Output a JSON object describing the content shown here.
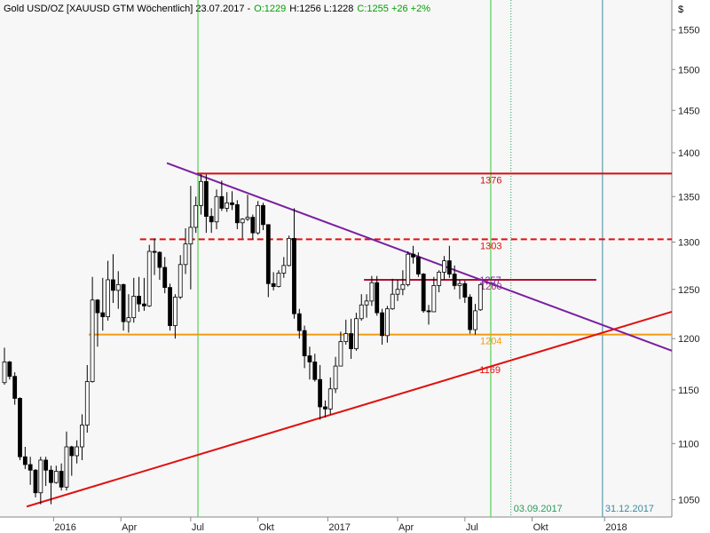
{
  "chart_data": {
    "type": "candlestick",
    "header": [
      {
        "text": "Gold USD/OZ [XAUUSD GTM  Wöchentlich] 23.07.2017 -",
        "color": "#000000"
      },
      {
        "text": "O:1229",
        "color": "#00a000"
      },
      {
        "text": "H:1256 L:1228",
        "color": "#000000"
      },
      {
        "text": "C:1255 +26 +2%",
        "color": "#00a000"
      }
    ],
    "y_unit": "$",
    "log_scale": true,
    "ylim": [
      1035,
      1589
    ],
    "yticks": [
      1050,
      1100,
      1150,
      1200,
      1250,
      1300,
      1350,
      1400,
      1450,
      1500,
      1550
    ],
    "xlim": [
      -0.86,
      129
    ],
    "xticks": [
      {
        "value": 9.5,
        "label": "2016"
      },
      {
        "value": 22.5,
        "label": "Apr"
      },
      {
        "value": 36,
        "label": "Jul"
      },
      {
        "value": 49,
        "label": "Okt"
      },
      {
        "value": 62.5,
        "label": "2017"
      },
      {
        "value": 76,
        "label": "Apr"
      },
      {
        "value": 89,
        "label": "Jul"
      },
      {
        "value": 102,
        "label": "Okt"
      },
      {
        "value": 116,
        "label": "2018"
      }
    ],
    "up_color": "#ffffff",
    "down_color": "#000000",
    "open": [
      1157,
      1177,
      1163,
      1142,
      1088,
      1081,
      1076,
      1056,
      1085,
      1076,
      1065,
      1075,
      1061,
      1097,
      1089,
      1097,
      1117,
      1158,
      1239,
      1226,
      1222,
      1260,
      1249,
      1255,
      1217,
      1221,
      1243,
      1235,
      1233,
      1290,
      1289,
      1273,
      1252,
      1213,
      1242,
      1276,
      1298,
      1316,
      1340,
      1367,
      1328,
      1322,
      1350,
      1337,
      1343,
      1341,
      1321,
      1325,
      1327,
      1310,
      1340,
      1319,
      1256,
      1253,
      1267,
      1275,
      1304,
      1225,
      1208,
      1183,
      1177,
      1160,
      1134,
      1132,
      1151,
      1173,
      1197,
      1205,
      1190,
      1220,
      1234,
      1238,
      1257,
      1226,
      1203,
      1230,
      1245,
      1250,
      1255,
      1287,
      1284,
      1266,
      1228,
      1227,
      1254,
      1268,
      1280,
      1266,
      1254,
      1256,
      1242,
      1209,
      1229
    ],
    "high": [
      1191,
      1178,
      1167,
      1143,
      1097,
      1088,
      1077,
      1088,
      1088,
      1080,
      1080,
      1082,
      1111,
      1098,
      1103,
      1127,
      1174,
      1263,
      1240,
      1262,
      1280,
      1287,
      1269,
      1256,
      1245,
      1262,
      1263,
      1262,
      1297,
      1304,
      1290,
      1284,
      1256,
      1245,
      1286,
      1315,
      1362,
      1350,
      1375,
      1375,
      1337,
      1358,
      1368,
      1355,
      1356,
      1346,
      1326,
      1352,
      1330,
      1345,
      1343,
      1319,
      1268,
      1270,
      1284,
      1307,
      1337,
      1230,
      1213,
      1192,
      1185,
      1174,
      1140,
      1162,
      1182,
      1207,
      1219,
      1220,
      1226,
      1245,
      1245,
      1264,
      1264,
      1230,
      1233,
      1261,
      1260,
      1270,
      1290,
      1296,
      1289,
      1267,
      1234,
      1263,
      1270,
      1285,
      1296,
      1275,
      1260,
      1259,
      1245,
      1235,
      1256
    ],
    "low": [
      1155,
      1160,
      1136,
      1085,
      1077,
      1063,
      1052,
      1046,
      1062,
      1046,
      1064,
      1058,
      1058,
      1071,
      1082,
      1085,
      1110,
      1157,
      1192,
      1208,
      1218,
      1236,
      1230,
      1208,
      1206,
      1216,
      1227,
      1228,
      1232,
      1265,
      1260,
      1246,
      1208,
      1200,
      1240,
      1266,
      1250,
      1310,
      1330,
      1310,
      1310,
      1314,
      1334,
      1333,
      1335,
      1314,
      1304,
      1323,
      1303,
      1308,
      1313,
      1242,
      1249,
      1252,
      1262,
      1274,
      1220,
      1200,
      1171,
      1160,
      1158,
      1122,
      1124,
      1127,
      1147,
      1173,
      1194,
      1180,
      1188,
      1218,
      1221,
      1233,
      1223,
      1194,
      1196,
      1229,
      1238,
      1244,
      1253,
      1277,
      1263,
      1226,
      1214,
      1228,
      1247,
      1260,
      1262,
      1250,
      1240,
      1236,
      1205,
      1204,
      1228
    ],
    "close": [
      1177,
      1163,
      1142,
      1088,
      1081,
      1076,
      1056,
      1085,
      1076,
      1065,
      1075,
      1061,
      1097,
      1089,
      1097,
      1117,
      1158,
      1239,
      1226,
      1222,
      1260,
      1249,
      1255,
      1217,
      1221,
      1243,
      1235,
      1233,
      1290,
      1289,
      1273,
      1252,
      1213,
      1242,
      1276,
      1298,
      1316,
      1340,
      1367,
      1328,
      1322,
      1350,
      1337,
      1343,
      1341,
      1321,
      1325,
      1327,
      1310,
      1340,
      1319,
      1256,
      1253,
      1267,
      1275,
      1304,
      1225,
      1208,
      1183,
      1177,
      1160,
      1134,
      1132,
      1151,
      1173,
      1197,
      1205,
      1190,
      1220,
      1234,
      1238,
      1257,
      1226,
      1203,
      1230,
      1245,
      1250,
      1255,
      1287,
      1284,
      1266,
      1228,
      1227,
      1254,
      1268,
      1280,
      1266,
      1254,
      1256,
      1242,
      1209,
      1228,
      1255
    ],
    "levels": [
      {
        "value": 1376,
        "start": 37.2,
        "end": 129,
        "color": "#d01010",
        "style": "solid"
      },
      {
        "value": 1303,
        "start": 26.2,
        "end": 129,
        "color": "#e01010",
        "style": "dashed"
      },
      {
        "value": 1260,
        "start": 69.5,
        "end": 114.4,
        "color": "#b01030",
        "style": "solid",
        "label_color": "#a0307a"
      },
      {
        "value": 1204,
        "start": 16.3,
        "end": 129,
        "color": "#f59a10",
        "style": "solid"
      }
    ],
    "trendlines": [
      {
        "x": [
          31.4,
          129
        ],
        "y": [
          1388,
          1188
        ],
        "color": "#7a1fa0",
        "label": 1257,
        "label_x": 92
      },
      {
        "x": [
          4.3,
          129
        ],
        "y": [
          1044,
          1227
        ],
        "color": "#e01010",
        "label": 1169,
        "label_x": 92
      }
    ],
    "vlines": [
      {
        "x": 37.4,
        "color": "#33cc33",
        "style": "solid"
      },
      {
        "x": 94.0,
        "color": "#33cc33",
        "style": "solid"
      },
      {
        "x": 97.9,
        "color": "#2a9a5a",
        "style": "dotted",
        "label": "03.09.2017"
      },
      {
        "x": 115.6,
        "color": "#3a8a9a",
        "style": "solid",
        "label": "31.12.2017"
      }
    ]
  }
}
